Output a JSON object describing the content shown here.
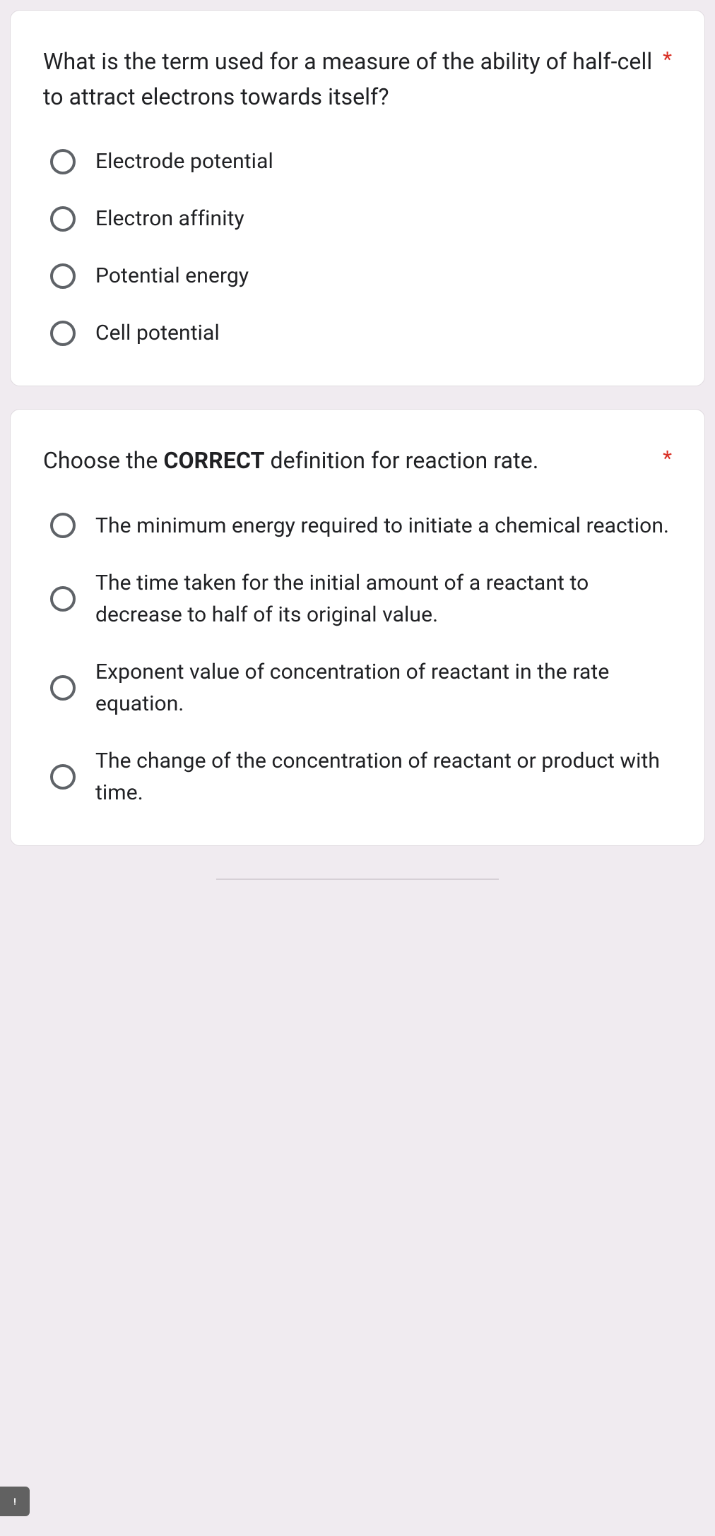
{
  "questions": [
    {
      "title_html": "What is the term used for a measure of the ability of half-cell to attract electrons towards itself?",
      "required": true,
      "options": [
        "Electrode potential",
        "Electron affinity",
        "Potential energy",
        "Cell potential"
      ]
    },
    {
      "title_html": "Choose the <b>CORRECT</b> definition for reaction rate.",
      "required": true,
      "options": [
        "The minimum energy required to initiate a chemical reaction.",
        "The time taken for the initial amount of a reactant to decrease to half of its original value.",
        "Exponent value of concentration of reactant in the rate equation.",
        "The change of the concentration of reactant or product with time."
      ]
    }
  ],
  "colors": {
    "page_bg": "#f0ebf0",
    "card_bg": "#ffffff",
    "text": "#202124",
    "radio_border": "#5f6368",
    "required": "#d93025"
  }
}
